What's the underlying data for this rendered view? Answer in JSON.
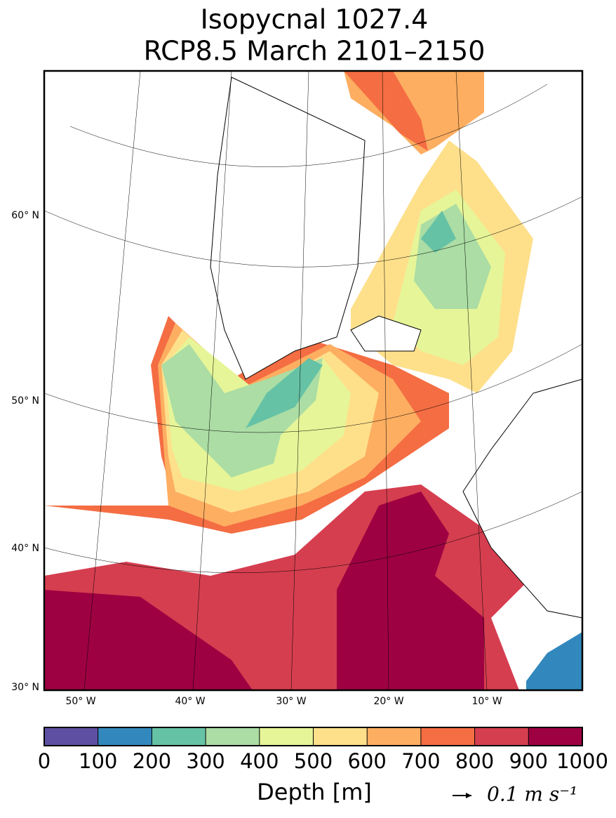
{
  "title": [
    "Isopycnal 1027.4",
    "RCP8.5 March 2101–2150"
  ],
  "map": {
    "lat_labels": [
      "60° N",
      "50° N",
      "40° N",
      "30° N"
    ],
    "lon_labels": [
      "50° W",
      "40° W",
      "30° W",
      "20° W",
      "10° W"
    ]
  },
  "colorbar": {
    "label": "Depth [m]",
    "ticks": [
      0,
      100,
      200,
      300,
      400,
      500,
      600,
      700,
      800,
      900,
      1000
    ],
    "colors": [
      "#5e4fa2",
      "#3288bd",
      "#66c2a5",
      "#abdda4",
      "#e6f598",
      "#fee08b",
      "#fdae61",
      "#f46d43",
      "#d53e4f",
      "#9e0142"
    ]
  },
  "quiver_key": {
    "label": "0.1 m s⁻¹"
  }
}
